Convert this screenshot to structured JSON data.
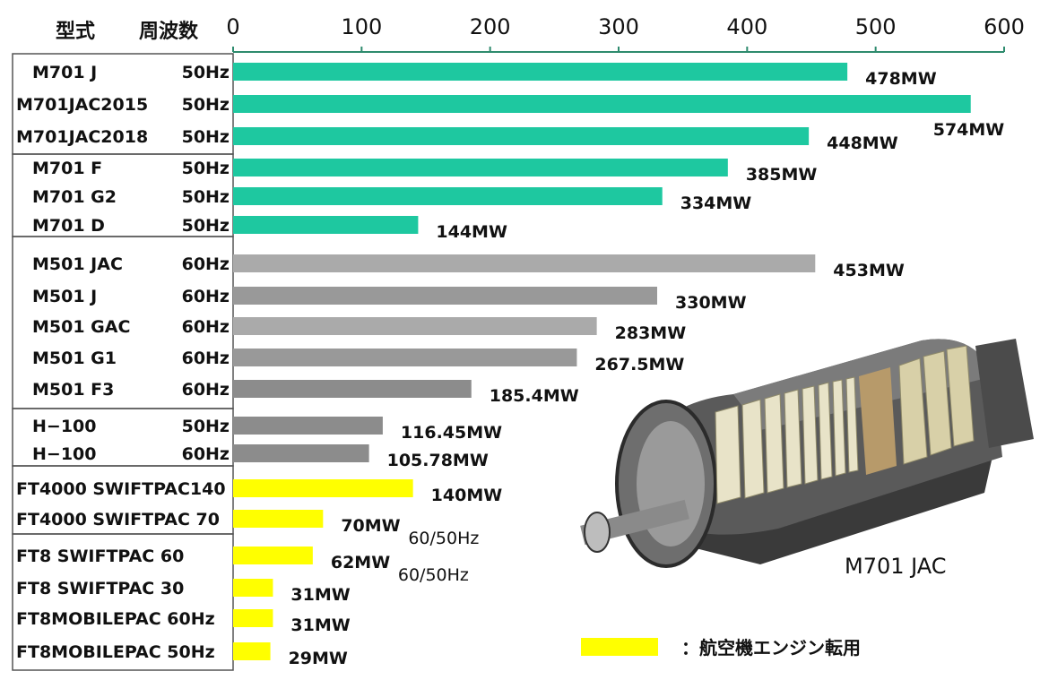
{
  "header": {
    "col_model": "型式",
    "col_freq": "周波数"
  },
  "chart_data": {
    "type": "bar",
    "orientation": "horizontal",
    "xlim": [
      0,
      600
    ],
    "xticks": [
      "0",
      "100",
      "200",
      "300",
      "400",
      "500",
      "600"
    ],
    "bars": [
      {
        "model": "M701 J",
        "freq": "50Hz",
        "value": 478,
        "label": "478MW",
        "color": "#1ec8a0",
        "group": 1
      },
      {
        "model": "M701JAC2015",
        "freq": "50Hz",
        "value": 574,
        "label": "574MW",
        "color": "#1ec8a0",
        "group": 1
      },
      {
        "model": "M701JAC2018",
        "freq": "50Hz",
        "value": 448,
        "label": "448MW",
        "color": "#1ec8a0",
        "group": 1
      },
      {
        "model": "M701 F",
        "freq": "50Hz",
        "value": 385,
        "label": "385MW",
        "color": "#1ec8a0",
        "group": 2
      },
      {
        "model": "M701 G2",
        "freq": "50Hz",
        "value": 334,
        "label": "334MW",
        "color": "#1ec8a0",
        "group": 2
      },
      {
        "model": "M701 D",
        "freq": "50Hz",
        "value": 144,
        "label": "144MW",
        "color": "#1ec8a0",
        "group": 2
      },
      {
        "model": "M501 JAC",
        "freq": "60Hz",
        "value": 453,
        "label": "453MW",
        "color": "#aaaaaa",
        "group": 3
      },
      {
        "model": "M501 J",
        "freq": "60Hz",
        "value": 330,
        "label": "330MW",
        "color": "#999999",
        "group": 3
      },
      {
        "model": "M501 GAC",
        "freq": "60Hz",
        "value": 283,
        "label": "283MW",
        "color": "#aaaaaa",
        "group": 3
      },
      {
        "model": "M501 G1",
        "freq": "60Hz",
        "value": 267.5,
        "label": "267.5MW",
        "color": "#999999",
        "group": 3
      },
      {
        "model": "M501 F3",
        "freq": "60Hz",
        "value": 185.4,
        "label": "185.4MW",
        "color": "#8c8c8c",
        "group": 3
      },
      {
        "model": "H−100",
        "freq": "50Hz",
        "value": 116.45,
        "label": "116.45MW",
        "color": "#8c8c8c",
        "group": 4
      },
      {
        "model": "H−100",
        "freq": "60Hz",
        "value": 105.78,
        "label": "105.78MW",
        "color": "#8c8c8c",
        "group": 4
      },
      {
        "model": "FT4000 SWIFTPAC140",
        "freq": "",
        "value": 140,
        "label": "140MW",
        "color": "#ffff00",
        "group": 5
      },
      {
        "model": "FT4000 SWIFTPAC 70",
        "freq": "",
        "value": 70,
        "label": "70MW",
        "color": "#ffff00",
        "group": 5
      },
      {
        "model": "FT8 SWIFTPAC 60",
        "freq": "",
        "value": 62,
        "label": "62MW",
        "color": "#ffff00",
        "group": 6
      },
      {
        "model": "FT8 SWIFTPAC 30",
        "freq": "",
        "value": 31,
        "label": "31MW",
        "color": "#ffff00",
        "group": 6
      },
      {
        "model": "FT8MOBILEPAC 60Hz",
        "freq": "",
        "value": 31,
        "label": "31MW",
        "color": "#ffff00",
        "group": 6
      },
      {
        "model": "FT8MOBILEPAC 50Hz",
        "freq": "",
        "value": 29,
        "label": "29MW",
        "color": "#ffff00",
        "group": 6
      }
    ],
    "annotations": [
      {
        "text": "60/50Hz",
        "near_bar": 14
      },
      {
        "text": "60/50Hz",
        "near_bar": 15
      }
    ],
    "legend": {
      "swatch_color": "#ffff00",
      "text": "：航空機エンジン転用",
      "placement": "bottom-right"
    }
  },
  "figure": {
    "image_icon": "gas-turbine-cutaway-icon",
    "caption": "M701 JAC"
  }
}
